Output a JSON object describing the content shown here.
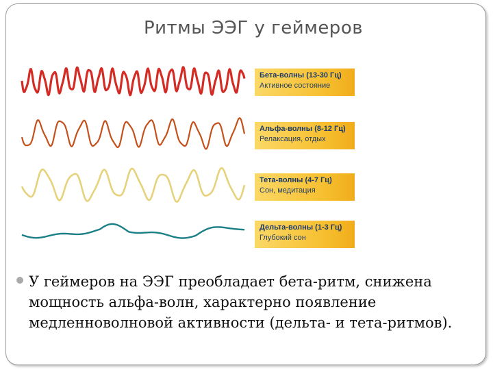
{
  "slide": {
    "title": "Ритмы ЭЭГ у геймеров",
    "bullet_text": "У геймеров на ЭЭГ преобладает бета-ритм, снижена мощность альфа-волн, характерно появление медленноволновой активности (дельта- и тета-ритмов)."
  },
  "eeg_bands": [
    {
      "name": "Бета-волны (13-30 Гц)",
      "description": "Активное состояние",
      "color": "#d42b25"
    },
    {
      "name": "Альфа-волны (8-12 Гц)",
      "description": "Релаксация, отдых",
      "color": "#c4501a"
    },
    {
      "name": "Тета-волны (4-7 Гц)",
      "description": "Сон, медитация",
      "color": "#e6d27a"
    },
    {
      "name": "Дельта-волны (1-3 Гц)",
      "description": "Глубокий сон",
      "color": "#1b7f86"
    }
  ],
  "bullet_icon": "gray-circle-bullet-icon"
}
